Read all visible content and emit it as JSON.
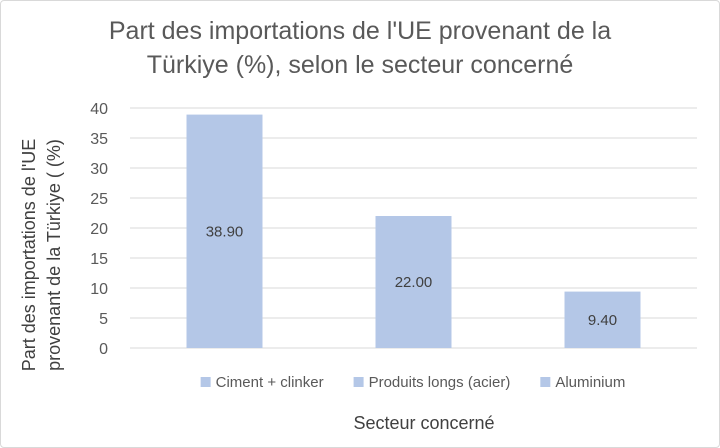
{
  "chart_data": {
    "type": "bar",
    "title_lines": [
      "Part des importations de l'UE provenant de la",
      "Türkiye (%), selon le secteur concerné"
    ],
    "xlabel": "Secteur concerné",
    "ylabel_lines": [
      "Part des importations de l'UE",
      "provenant de la Türkiye ( (%)"
    ],
    "categories": [
      "Ciment + clinker",
      "Produits longs (acier)",
      "Aluminium"
    ],
    "values": [
      38.9,
      22.0,
      9.4
    ],
    "data_labels": [
      "38.90",
      "22.00",
      "9.40"
    ],
    "ylim": [
      0,
      40
    ],
    "yticks": [
      0,
      5,
      10,
      15,
      20,
      25,
      30,
      35,
      40
    ],
    "grid": true,
    "legend_position": "bottom",
    "colors": {
      "bar": "#b4c7e7",
      "grid": "#d9d9d9",
      "text": "#595959"
    }
  }
}
